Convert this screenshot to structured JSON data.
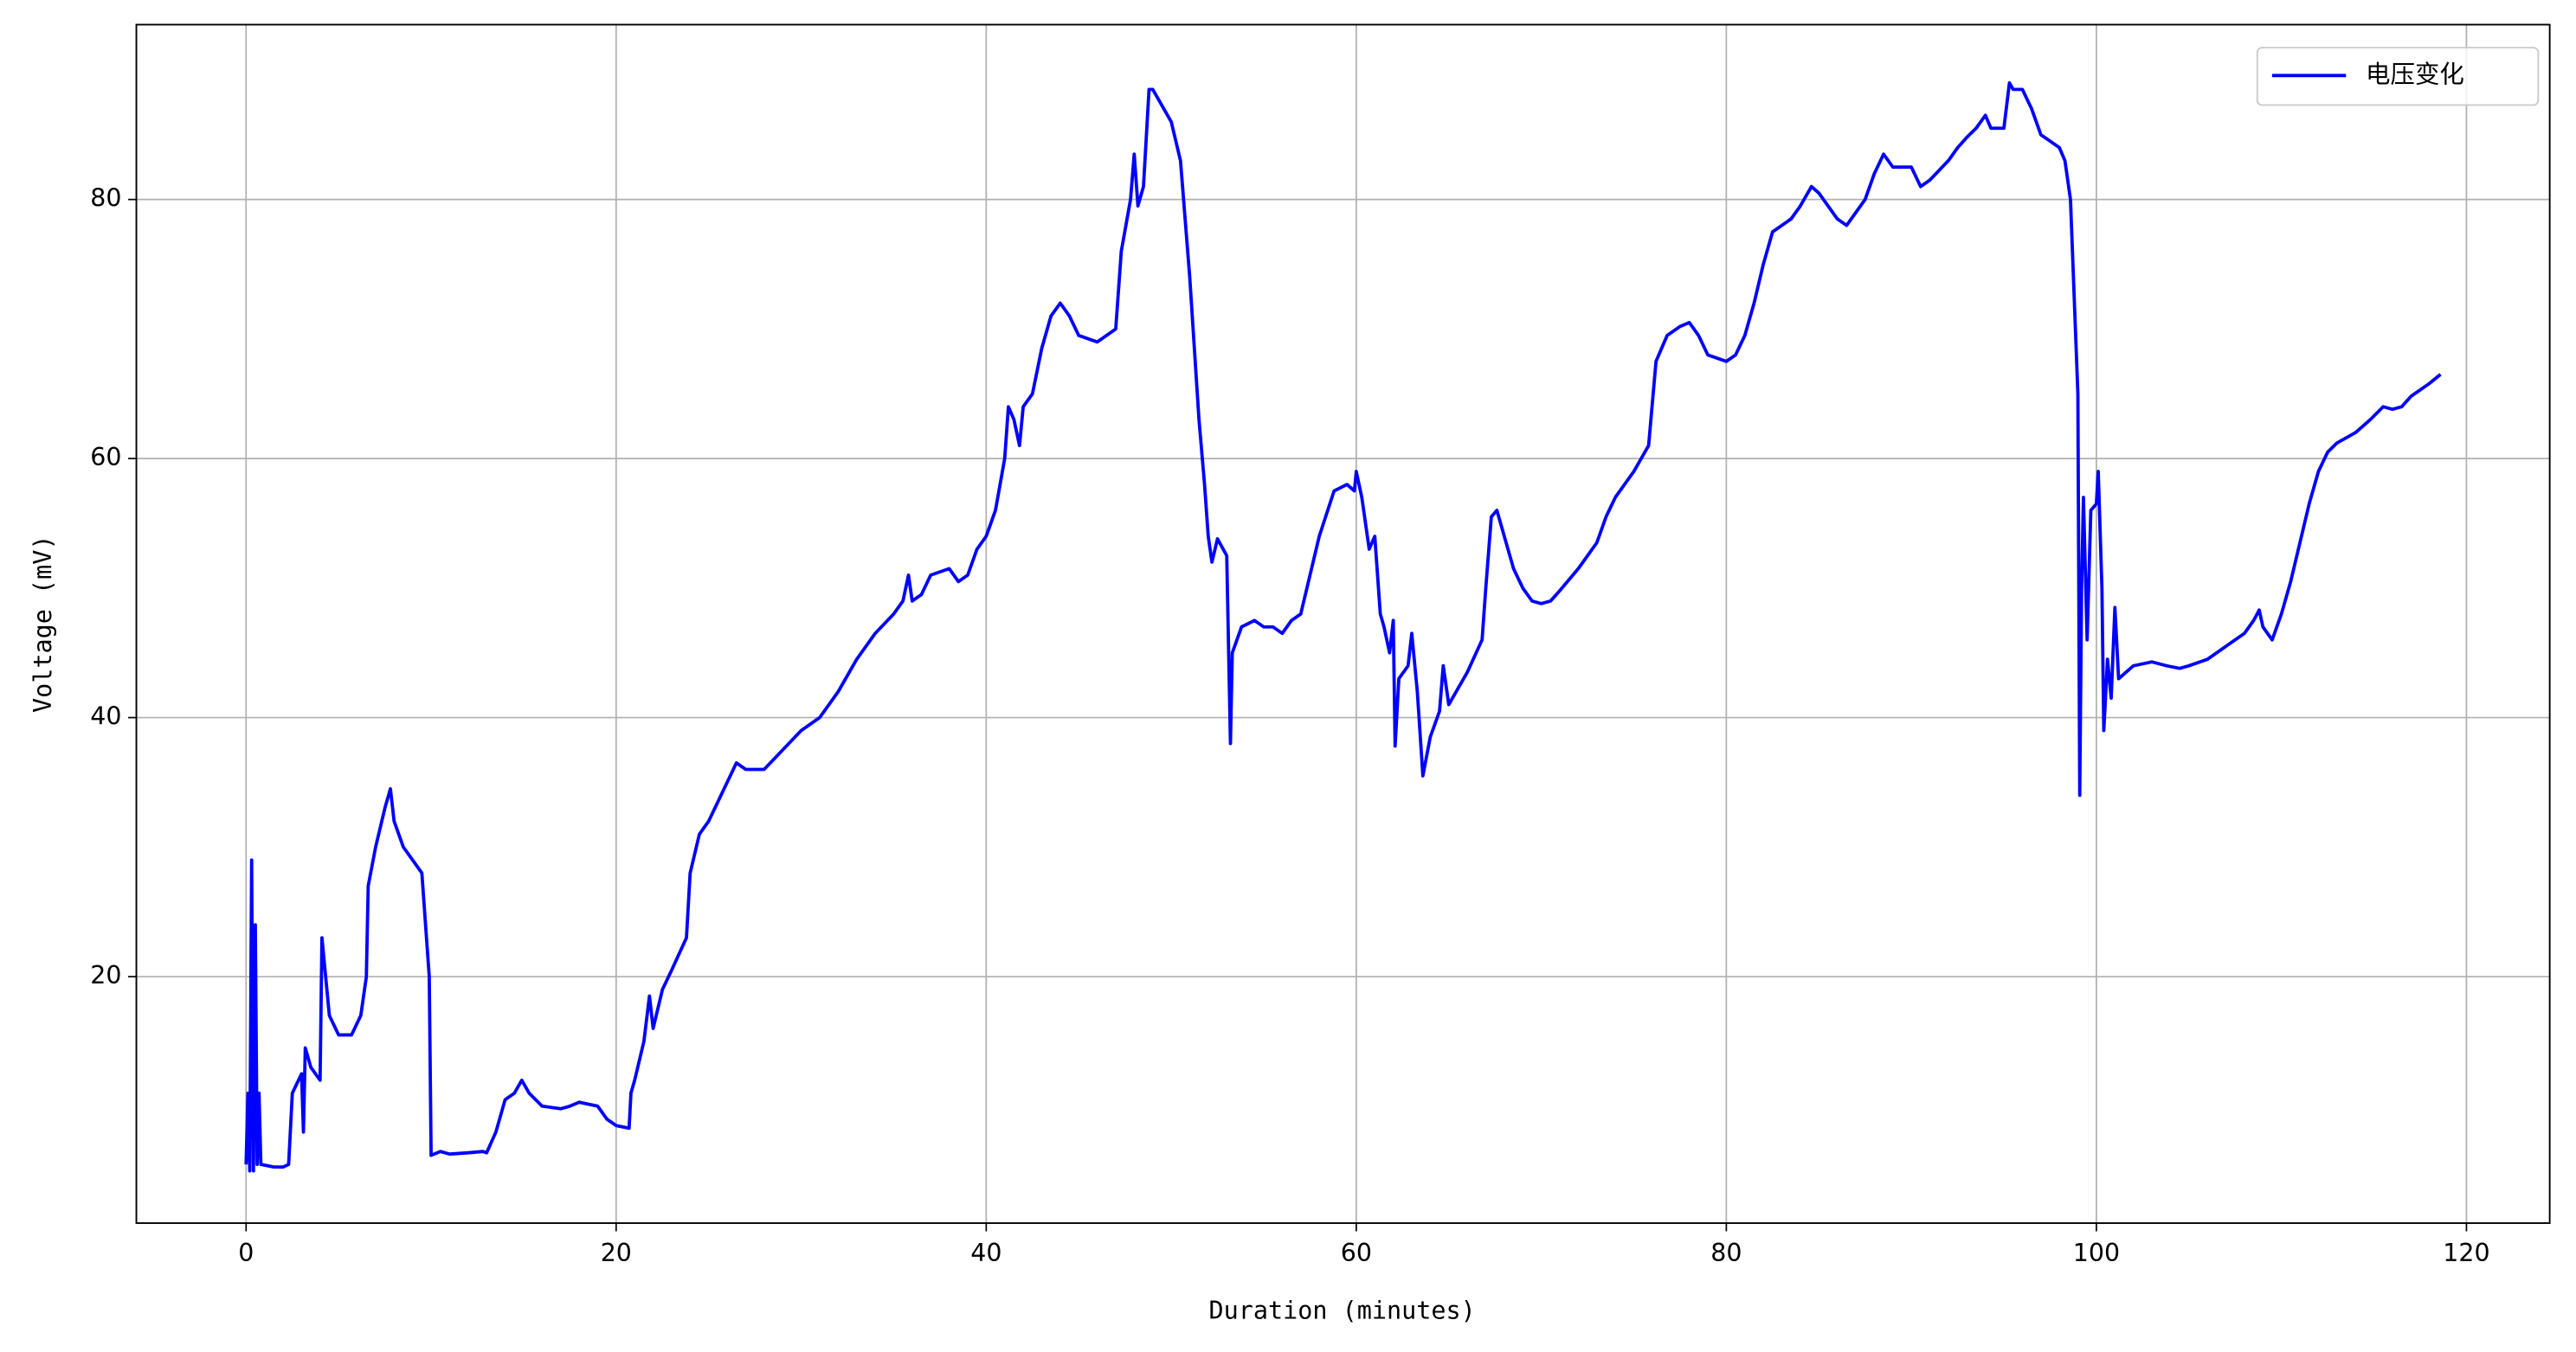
{
  "chart_data": {
    "type": "line",
    "xlabel": "Duration (minutes)",
    "ylabel": "Voltage (mV)",
    "xlim": [
      -5.93,
      124.5
    ],
    "ylim": [
      0.97,
      93.5
    ],
    "xticks": [
      0,
      20,
      40,
      60,
      80,
      100,
      120
    ],
    "yticks": [
      20,
      40,
      60,
      80
    ],
    "grid": true,
    "legend": "upper right",
    "x": [
      0,
      0.1,
      0.2,
      0.3,
      0.4,
      0.5,
      0.6,
      0.7,
      0.8,
      1.5,
      2,
      2.3,
      2.5,
      3,
      3.1,
      3.2,
      3.5,
      4,
      4.1,
      4.5,
      5,
      5.7,
      6.2,
      6.5,
      6.6,
      7,
      7.5,
      7.8,
      8,
      8.5,
      9,
      9.5,
      9.9,
      10,
      10.5,
      11,
      12,
      12.8,
      13,
      13.5,
      14,
      14.5,
      14.9,
      15.3,
      16,
      17,
      17.5,
      18,
      19,
      19.5,
      20,
      20.7,
      20.8,
      21,
      21.5,
      21.8,
      22,
      22.5,
      23,
      23.8,
      24,
      24.5,
      25,
      26,
      26.5,
      27,
      28,
      29,
      30,
      31,
      32,
      33,
      34,
      35,
      35.5,
      35.8,
      36,
      36.5,
      37,
      38,
      38.5,
      39,
      39.5,
      40,
      40.5,
      41,
      41.2,
      41.5,
      41.8,
      42,
      42.5,
      43,
      43.5,
      44,
      44.5,
      45,
      46,
      47,
      47.3,
      47.8,
      48,
      48.2,
      48.5,
      48.8,
      49,
      50,
      50.5,
      51,
      51.5,
      51.8,
      52,
      52.2,
      52.5,
      53,
      53.2,
      53.3,
      53.8,
      54.5,
      55,
      55.5,
      56,
      56.5,
      57,
      57.5,
      58,
      58.8,
      59.5,
      59.9,
      60,
      60.3,
      60.7,
      61,
      61.3,
      61.5,
      61.8,
      62,
      62.1,
      62.3,
      62.8,
      63,
      63.3,
      63.6,
      64,
      64.5,
      64.7,
      65,
      66,
      66.8,
      67,
      67.3,
      67.6,
      68,
      68.5,
      69,
      69.5,
      70,
      70.5,
      71,
      72,
      73,
      73.5,
      74,
      75,
      75.8,
      76.2,
      76.8,
      77.5,
      78,
      78.5,
      79,
      80,
      80.5,
      81,
      81.5,
      82,
      82.5,
      83.5,
      84,
      84.6,
      85,
      85.5,
      86,
      86.5,
      87,
      87.5,
      88,
      88.5,
      89,
      89.5,
      90,
      90.5,
      91,
      92,
      92.5,
      93,
      93.5,
      94,
      94.3,
      95,
      95.3,
      95.5,
      96,
      96.5,
      97,
      97.5,
      98,
      98.3,
      98.6,
      99,
      99.1,
      99.2,
      99.3,
      99.5,
      99.7,
      100,
      100.1,
      100.3,
      100.4,
      100.6,
      100.8,
      101,
      101.2,
      102,
      103,
      103.8,
      104.5,
      105,
      106,
      107,
      107.5,
      108,
      108.5,
      108.8,
      109,
      109.5,
      110,
      110.5,
      111,
      111.5,
      112,
      112.5,
      113,
      114,
      114.8,
      115.5,
      116,
      116.5,
      117,
      118,
      118.6
    ],
    "series": [
      {
        "name": "电压变化",
        "color": "#0000ff",
        "values": [
          5.5,
          11,
          5,
          29,
          5,
          24,
          5.5,
          11,
          5.5,
          5.3,
          5.3,
          5.5,
          11,
          12.5,
          8,
          14.5,
          13,
          12,
          23,
          17,
          15.5,
          15.5,
          17,
          20,
          27,
          30,
          33,
          34.5,
          32,
          30,
          29,
          28,
          20,
          6.2,
          6.5,
          6.3,
          6.4,
          6.5,
          6.4,
          8,
          10.5,
          11,
          12,
          11,
          10,
          9.8,
          10,
          10.3,
          10,
          9,
          8.5,
          8.3,
          11,
          12,
          15,
          18.5,
          16,
          19,
          20.5,
          23,
          28,
          31,
          32,
          35,
          36.5,
          36,
          36,
          37.5,
          39,
          40,
          42,
          44.5,
          46.5,
          48,
          49,
          51,
          49,
          49.5,
          51,
          51.5,
          50.5,
          51,
          53,
          54,
          56,
          60,
          64,
          63,
          61,
          64,
          65,
          68.5,
          71,
          72,
          71,
          69.5,
          69,
          70,
          76,
          80,
          83.5,
          79.5,
          81,
          88.5,
          88.5,
          86,
          83,
          74,
          63,
          58,
          54,
          52,
          53.8,
          52.5,
          38,
          45,
          47,
          47.5,
          47,
          47,
          46.5,
          47.5,
          48,
          51,
          54,
          57.5,
          58,
          57.5,
          59,
          57,
          53,
          54,
          48,
          47,
          45,
          47.5,
          37.8,
          43,
          44,
          46.5,
          42,
          35.5,
          38.5,
          40.5,
          44,
          41,
          43.5,
          46,
          50,
          55.5,
          56,
          54,
          51.5,
          50,
          49,
          48.8,
          49,
          49.8,
          51.5,
          53.5,
          55.5,
          57,
          59,
          61,
          67.5,
          69.5,
          70.2,
          70.5,
          69.5,
          68,
          67.5,
          68,
          69.5,
          72,
          75,
          77.5,
          78.5,
          79.5,
          81,
          80.5,
          79.5,
          78.5,
          78,
          79,
          80,
          82,
          83.5,
          82.5,
          82.5,
          82.5,
          81,
          81.5,
          83,
          84,
          84.8,
          85.5,
          86.5,
          85.5,
          85.5,
          89,
          88.5,
          88.5,
          87,
          85,
          84.5,
          84,
          83,
          80,
          65,
          34,
          50,
          57,
          46,
          56,
          56.5,
          59,
          50,
          39,
          44.5,
          41.5,
          48.5,
          43,
          44,
          44.3,
          44,
          43.8,
          44,
          44.5,
          45.5,
          46,
          46.5,
          47.5,
          48.3,
          47,
          46,
          48,
          50.5,
          53.5,
          56.5,
          59,
          60.5,
          61.2,
          62,
          63,
          64,
          63.8,
          64,
          64.8,
          65.8,
          66.5
        ]
      }
    ]
  }
}
